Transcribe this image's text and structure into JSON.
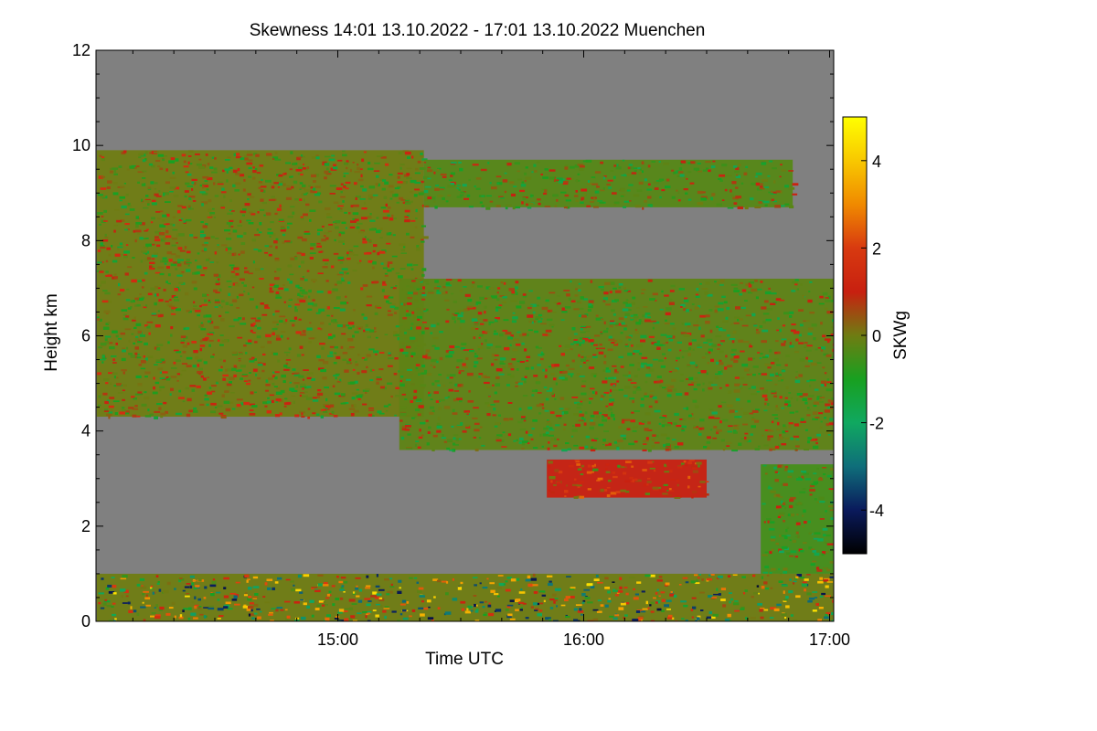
{
  "chart_data": {
    "type": "heatmap",
    "title": "Skewness   14:01 13.10.2022 - 17:01 13.10.2022 Muenchen",
    "xlabel": "Time UTC",
    "ylabel": "Height km",
    "x_range_hours": [
      14.0167,
      17.0167
    ],
    "x_ticks": [
      {
        "value": 15.0,
        "label": "15:00"
      },
      {
        "value": 16.0,
        "label": "16:00"
      },
      {
        "value": 17.0,
        "label": "17:00"
      }
    ],
    "y_range_km": [
      0,
      12
    ],
    "y_ticks": [
      {
        "value": 0,
        "label": "0"
      },
      {
        "value": 2,
        "label": "2"
      },
      {
        "value": 4,
        "label": "4"
      },
      {
        "value": 6,
        "label": "6"
      },
      {
        "value": 8,
        "label": "8"
      },
      {
        "value": 10,
        "label": "10"
      },
      {
        "value": 12,
        "label": "12"
      }
    ],
    "colorbar": {
      "label": "SKWg",
      "range": [
        -5,
        5
      ],
      "ticks": [
        {
          "value": 4,
          "label": "4"
        },
        {
          "value": 2,
          "label": "2"
        },
        {
          "value": 0,
          "label": "0"
        },
        {
          "value": -2,
          "label": "-2"
        },
        {
          "value": -4,
          "label": "-4"
        }
      ],
      "stops": [
        {
          "value": -5,
          "color": "#000000"
        },
        {
          "value": -4,
          "color": "#0a1a5c"
        },
        {
          "value": -3,
          "color": "#0f6e7a"
        },
        {
          "value": -2,
          "color": "#10a860"
        },
        {
          "value": -1,
          "color": "#18a020"
        },
        {
          "value": 0,
          "color": "#6f7c12"
        },
        {
          "value": 1,
          "color": "#c82010"
        },
        {
          "value": 2,
          "color": "#d83a10"
        },
        {
          "value": 3,
          "color": "#f08a00"
        },
        {
          "value": 4,
          "color": "#f8c800"
        },
        {
          "value": 5,
          "color": "#ffff00"
        }
      ]
    },
    "nodata_color": "#808080",
    "regions": [
      {
        "name": "upper-cloud-layer",
        "x_range_hours": [
          14.02,
          15.35
        ],
        "y_range_km": [
          4.3,
          9.9
        ],
        "mean_value": 0.0
      },
      {
        "name": "thin-cirrus-band",
        "x_range_hours": [
          15.35,
          16.85
        ],
        "y_range_km": [
          8.7,
          9.7
        ],
        "mean_value": -0.3
      },
      {
        "name": "mid-cloud-layer",
        "x_range_hours": [
          15.25,
          17.02
        ],
        "y_range_km": [
          3.6,
          7.2
        ],
        "mean_value": -0.2
      },
      {
        "name": "small-cloud-3km",
        "x_range_hours": [
          15.85,
          16.5
        ],
        "y_range_km": [
          2.6,
          3.4
        ],
        "mean_value": 1.0
      },
      {
        "name": "low-cloud-right",
        "x_range_hours": [
          16.72,
          17.02
        ],
        "y_range_km": [
          1.0,
          3.3
        ],
        "mean_value": -0.5
      },
      {
        "name": "boundary-layer",
        "x_range_hours": [
          14.02,
          17.02
        ],
        "y_range_km": [
          0.0,
          1.0
        ],
        "mean_value": 0.0
      }
    ]
  }
}
